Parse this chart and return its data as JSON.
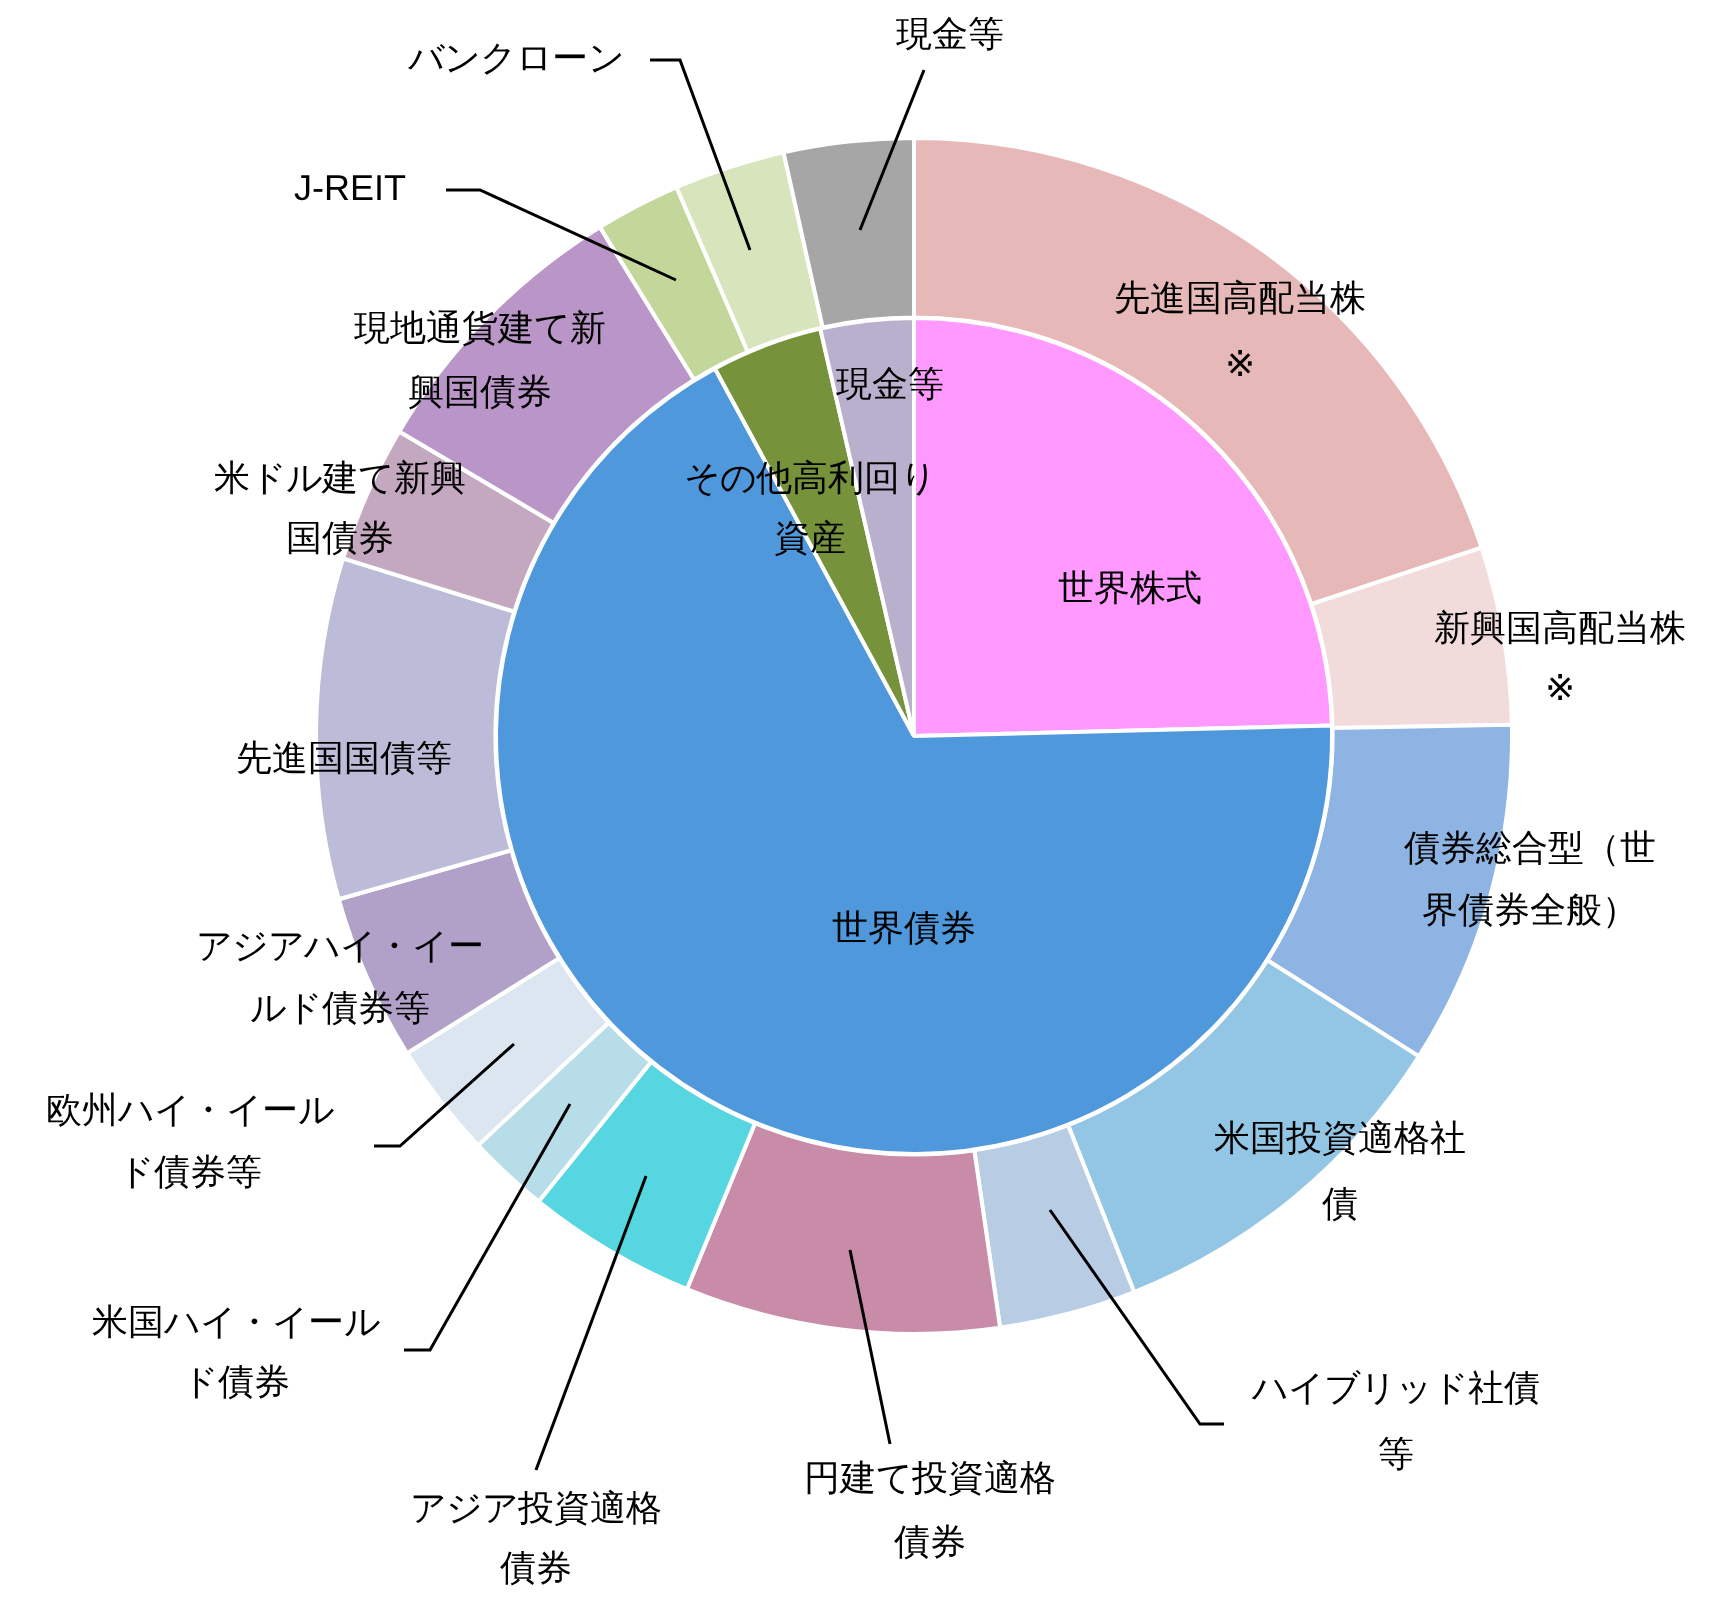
{
  "chart_data": [
    {
      "type": "donut",
      "legend": false,
      "categories": [
        "先進国高配当株※",
        "新興国高配当株※",
        "債券総合型（世界債券全般）",
        "米国投資適格社債",
        "ハイブリッド社債等",
        "円建て投資適格債券",
        "アジア投資適格債券",
        "米国ハイ・イールド債券",
        "欧州ハイ・イールド債券等",
        "アジアハイ・イールド債券等",
        "先進国国債等",
        "米ドル建て新興国債券",
        "現地通貨建て新興国債券",
        "J-REIT",
        "バンクローン",
        "現金等"
      ],
      "values": [
        19.9,
        4.8,
        9.3,
        10.0,
        3.7,
        8.5,
        4.6,
        2.2,
        3.1,
        4.5,
        9.2,
        3.7,
        7.7,
        2.3,
        3.0,
        3.5
      ],
      "colors": [
        "#e6b8b7",
        "#f2dcdb",
        "#8db4e2",
        "#93c6e4",
        "#b8cce4",
        "#c88ca8",
        "#55d6e0",
        "#b7dde8",
        "#dce6f1",
        "#b1a0c7",
        "#bcbcd8",
        "#c4a8c0",
        "#b996c7",
        "#c4d79b",
        "#d8e4bc",
        "#a6a6a6"
      ]
    },
    {
      "type": "pie",
      "legend": false,
      "categories": [
        "世界株式",
        "世界債券",
        "その他高利回り資産",
        "現金等"
      ],
      "values": [
        24.6,
        67.5,
        4.3,
        3.6
      ],
      "colors": [
        "#ff99ff",
        "#4f98dc",
        "#76933c",
        "#b8b0cc"
      ]
    }
  ]
}
